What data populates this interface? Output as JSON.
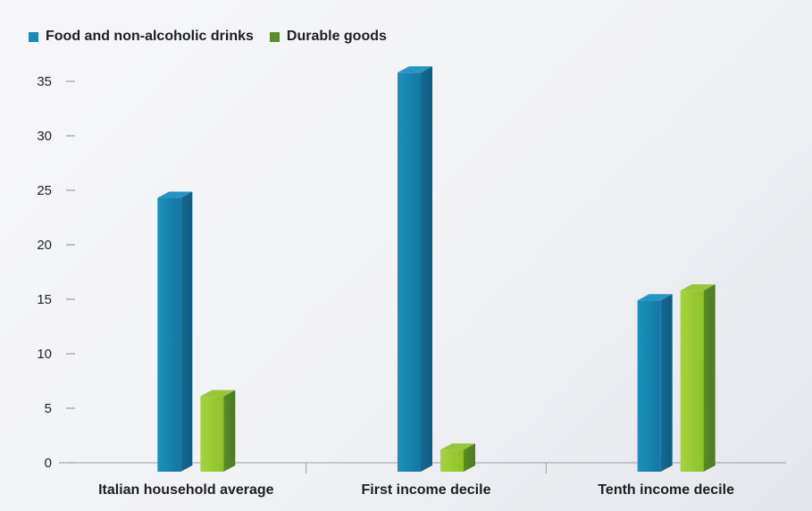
{
  "chart_data": {
    "type": "bar",
    "categories": [
      "Italian household average",
      "First income decile",
      "Tenth income decile"
    ],
    "series": [
      {
        "name": "Food and non-alcoholic drinks",
        "values": [
          24.3,
          35.8,
          14.9
        ],
        "color": "#1577a0"
      },
      {
        "name": "Durable goods",
        "values": [
          6.1,
          1.2,
          15.8
        ],
        "color": "#5c8c2c"
      }
    ],
    "ylim": [
      0,
      35
    ],
    "yticks": [
      0,
      5,
      10,
      15,
      20,
      25,
      30,
      35
    ],
    "grid": false,
    "legend": "top-left",
    "title": "",
    "xlabel": "",
    "ylabel": ""
  }
}
